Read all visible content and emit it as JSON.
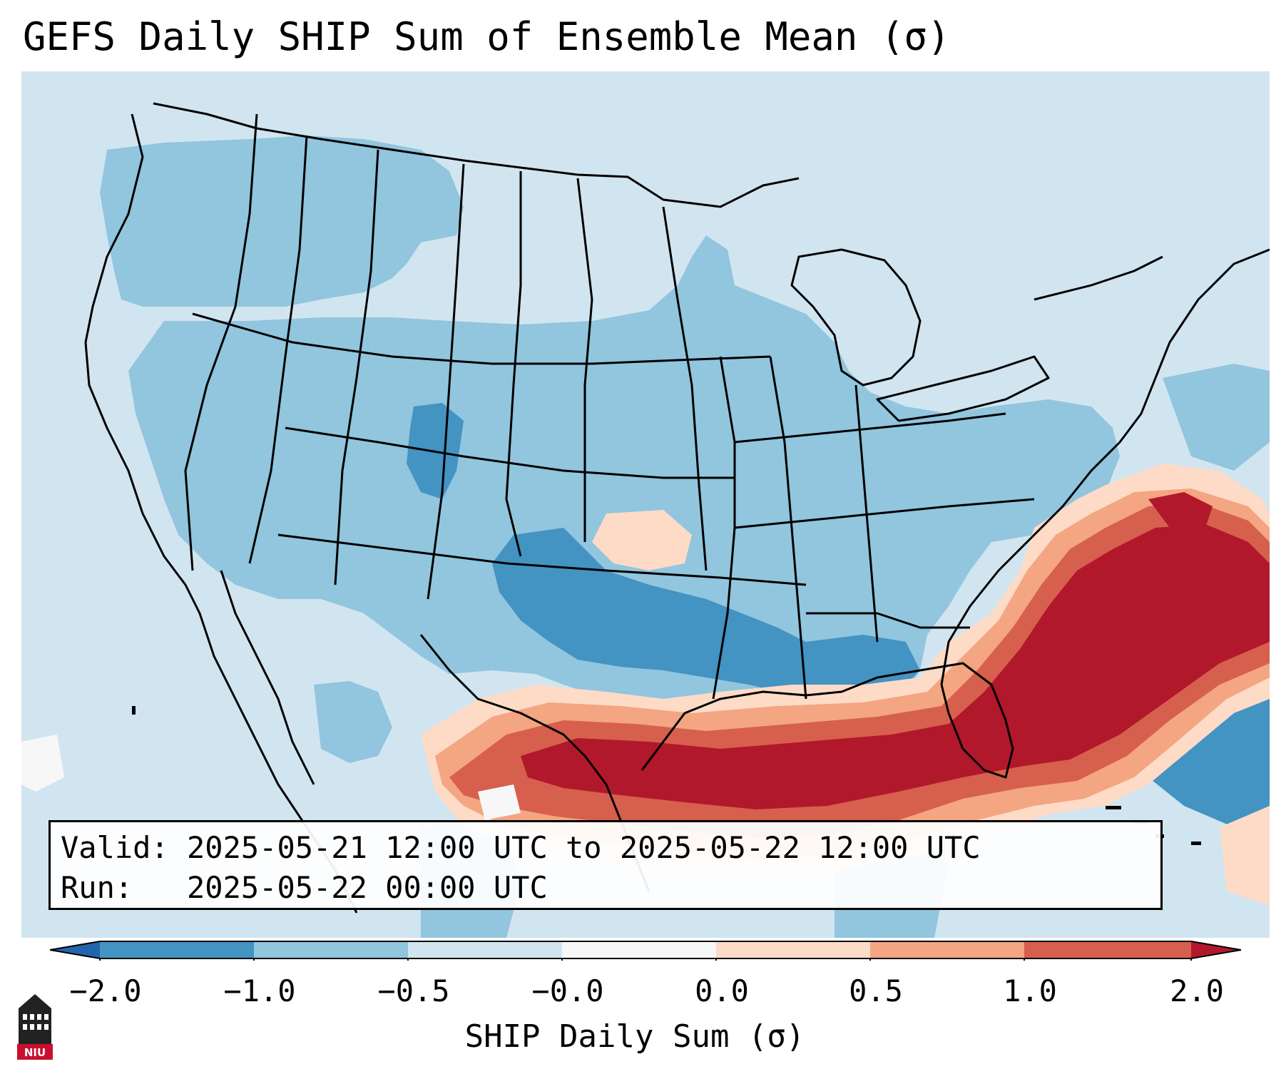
{
  "title": "GEFS Daily SHIP Sum of Ensemble Mean (σ)",
  "info": {
    "valid_label": "Valid:",
    "valid_value": "2025-05-21 12:00 UTC to 2025-05-22 12:00 UTC",
    "run_label": "Run:",
    "run_value": "2025-05-22 00:00 UTC"
  },
  "colorbar": {
    "label": "SHIP Daily Sum (σ)",
    "ticks": [
      "−2.0",
      "−1.0",
      "−0.5",
      "−0.0",
      "0.0",
      "0.5",
      "1.0",
      "2.0"
    ],
    "colors": [
      "#4393c3",
      "#92c5de",
      "#d1e5f0",
      "#f7f7f7",
      "#fddbc7",
      "#f4a582",
      "#d6604d",
      "#b2182b"
    ],
    "extend_low_color": "#2166ac",
    "extend_high_color": "#b2182b"
  },
  "map": {
    "background_color": "#d1e5f0",
    "border_color": "#000000"
  },
  "logo": {
    "text": "NIU",
    "icon": "niu-tower-logo-icon",
    "color": "#c8102e"
  }
}
